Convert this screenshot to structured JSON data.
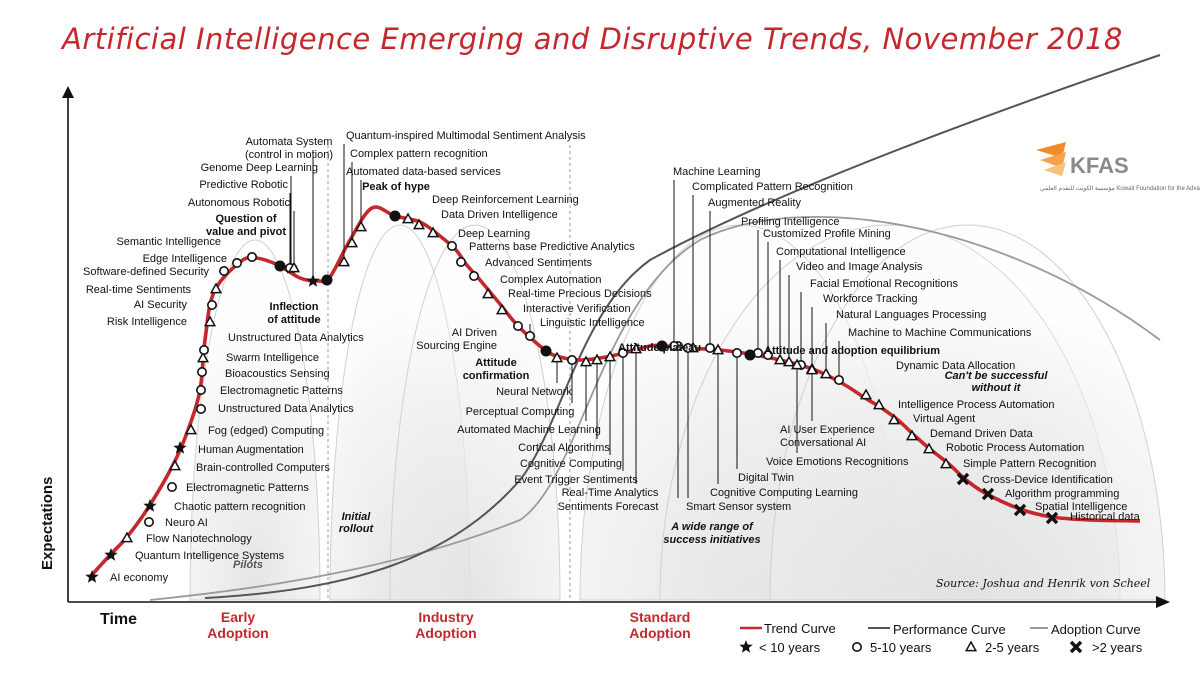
{
  "title": "Artificial Intelligence Emerging and Disruptive Trends, November 2018",
  "logo": {
    "name": "KFAS",
    "subtitle": "مؤسسة الكويت للتقدم العلمي Kuwait Foundation for the Advancement of Sciences"
  },
  "axes": {
    "y_label": "Expectations",
    "x_label": "Time"
  },
  "phases": [
    "Early\nAdoption",
    "Industry\nAdoption",
    "Standard\nAdoption"
  ],
  "callouts": {
    "question": "Question of\nvalue and pivot",
    "inflection": "Inflection\nof attitude",
    "peak": "Peak of hype",
    "confirmation": "Attitude\nconfirmation",
    "plateau": "Attitude plateau",
    "equilibrium": "Attitude and adoption equilibrium",
    "cant": "Can't be successful\nwithout it",
    "pilots": "Pilots",
    "rollout": "Initial\nrollout",
    "wide": "A wide range of\nsuccess initiatives",
    "source": "Source: Joshua and Henrik von Scheel"
  },
  "legend": {
    "trend": "Trend Curve",
    "performance": "Performance Curve",
    "adoption": "Adoption Curve",
    "lt10": "< 10 years",
    "y5_10": "5-10 years",
    "y2_5": "2-5 years",
    "gt2": ">2 years"
  },
  "colors": {
    "trend": "#c4282d",
    "title": "#c4282d",
    "performance": "#555555",
    "adoption": "#9a9a9a",
    "logo_orange": "#f28c28"
  },
  "marker_types": {
    "star": "< 10 years",
    "circle": "5-10 years",
    "triangle": "2-5 years",
    "cross": ">2 years"
  },
  "items": [
    {
      "label": "AI economy",
      "marker": "star"
    },
    {
      "label": "Quantum Intelligence Systems",
      "marker": "star"
    },
    {
      "label": "Flow Nanotechnology",
      "marker": "triangle"
    },
    {
      "label": "Neuro AI",
      "marker": "circle"
    },
    {
      "label": "Chaotic pattern recognition",
      "marker": "star"
    },
    {
      "label": "Electromagnetic Patterns",
      "marker": "circle"
    },
    {
      "label": "Brain-controlled Computers",
      "marker": "triangle"
    },
    {
      "label": "Human Augmentation",
      "marker": "star"
    },
    {
      "label": "Fog (edged) Computing",
      "marker": "triangle"
    },
    {
      "label": "Unstructured Data Analytics",
      "marker": "circle"
    },
    {
      "label": "Electromagnetic Patterns",
      "marker": "circle"
    },
    {
      "label": "Bioacoustics Sensing",
      "marker": "circle"
    },
    {
      "label": "Swarm Intelligence",
      "marker": "triangle"
    },
    {
      "label": "Unstructured Data Analytics",
      "marker": "circle"
    },
    {
      "label": "Risk Intelligence",
      "marker": "triangle"
    },
    {
      "label": "AI Security",
      "marker": "circle"
    },
    {
      "label": "Real-time Sentiments",
      "marker": "triangle"
    },
    {
      "label": "Software-defined Security",
      "marker": "circle"
    },
    {
      "label": "Edge Intelligence",
      "marker": "circle"
    },
    {
      "label": "Semantic Intelligence",
      "marker": "circle"
    },
    {
      "label": "Genome Deep Learning",
      "marker": "star"
    },
    {
      "label": "Predictive Robotic",
      "marker": "circle"
    },
    {
      "label": "Autonomous Robotic",
      "marker": "triangle"
    },
    {
      "label": "Automata System\n(control in motion)",
      "marker": "star"
    },
    {
      "label": "Quantum-inspired Multimodal Sentiment Analysis",
      "marker": "triangle"
    },
    {
      "label": "Complex pattern recognition",
      "marker": "triangle"
    },
    {
      "label": "Automated data-based services",
      "marker": "triangle"
    },
    {
      "label": "Deep Reinforcement Learning",
      "marker": "triangle"
    },
    {
      "label": "Data Driven Intelligence",
      "marker": "triangle"
    },
    {
      "label": "Deep Learning",
      "marker": "triangle"
    },
    {
      "label": "Patterns base Predictive Analytics",
      "marker": "circle"
    },
    {
      "label": "Advanced Sentiments",
      "marker": "circle"
    },
    {
      "label": "Complex Automation",
      "marker": "circle"
    },
    {
      "label": "Real-time Precious Decisions",
      "marker": "triangle"
    },
    {
      "label": "Interactive Verification",
      "marker": "triangle"
    },
    {
      "label": "Linguistic Intelligence",
      "marker": "circle"
    },
    {
      "label": "AI Driven\nSourcing Engine",
      "marker": "circle"
    },
    {
      "label": "Neural Network",
      "marker": "triangle"
    },
    {
      "label": "Perceptual Computing",
      "marker": "circle"
    },
    {
      "label": "Automated Machine Learning",
      "marker": "triangle"
    },
    {
      "label": "Cortical Algorithms",
      "marker": "triangle"
    },
    {
      "label": "Cognitive Computing",
      "marker": "triangle"
    },
    {
      "label": "Event Trigger Sentiments",
      "marker": "circle"
    },
    {
      "label": "Real-Time Analytics",
      "marker": "triangle"
    },
    {
      "label": "Sentiments Forecast",
      "marker": "circle"
    },
    {
      "label": "Machine Learning",
      "marker": "circle"
    },
    {
      "label": "Complicated Pattern Recognition",
      "marker": "triangle"
    },
    {
      "label": "Augmented Reality",
      "marker": "circle"
    },
    {
      "label": "Smart Sensor system",
      "marker": "circle"
    },
    {
      "label": "Cognitive Computing Learning",
      "marker": "triangle"
    },
    {
      "label": "Digital Twin",
      "marker": "circle"
    },
    {
      "label": "Profiling Intelligence",
      "marker": "circle"
    },
    {
      "label": "Customized Profile Mining",
      "marker": "circle"
    },
    {
      "label": "Computational Intelligence",
      "marker": "triangle"
    },
    {
      "label": "Video and Image Analysis",
      "marker": "triangle"
    },
    {
      "label": "Facial Emotional Recognitions",
      "marker": "circle"
    },
    {
      "label": "Workforce Tracking",
      "marker": "triangle"
    },
    {
      "label": "Natural Languages Processing",
      "marker": "triangle"
    },
    {
      "label": "Machine to Machine Communications",
      "marker": "circle"
    },
    {
      "label": "Voice Emotions Recognitions",
      "marker": "triangle"
    },
    {
      "label": "AI User Experience\nConversational AI",
      "marker": "triangle"
    },
    {
      "label": "Dynamic Data Allocation",
      "marker": "triangle"
    },
    {
      "label": "Intelligence Process Automation",
      "marker": "triangle"
    },
    {
      "label": "Virtual Agent",
      "marker": "triangle"
    },
    {
      "label": "Demand Driven Data",
      "marker": "triangle"
    },
    {
      "label": "Robotic Process Automation",
      "marker": "triangle"
    },
    {
      "label": "Simple Pattern Recognition",
      "marker": "triangle"
    },
    {
      "label": "Cross-Device Identification",
      "marker": "cross"
    },
    {
      "label": "Algorithm programming",
      "marker": "cross"
    },
    {
      "label": "Spatial Intelligence",
      "marker": "cross"
    },
    {
      "label": "Historical data",
      "marker": "cross"
    }
  ]
}
